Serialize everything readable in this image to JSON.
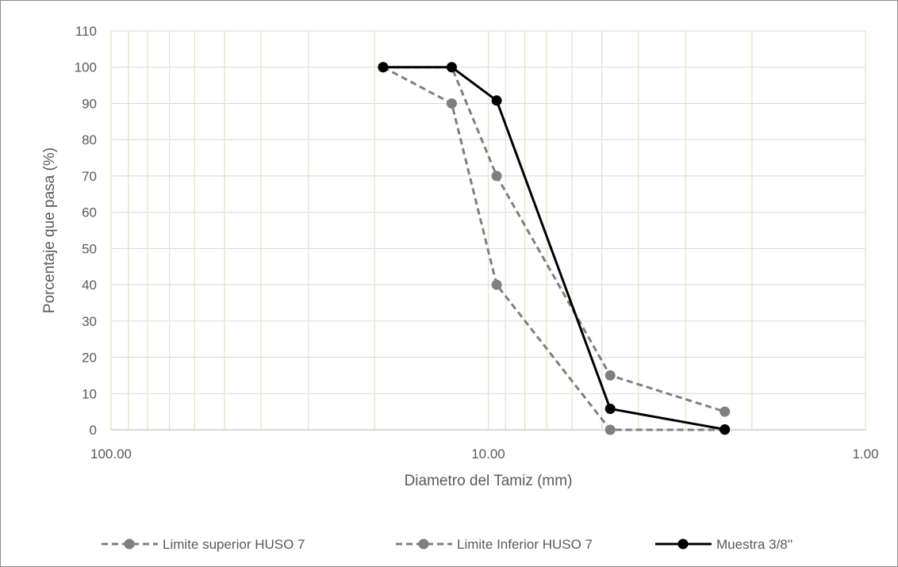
{
  "chart_data": {
    "type": "line",
    "title": "",
    "xlabel": "Diametro del Tamiz (mm)",
    "ylabel": "Porcentaje que pasa (%)",
    "x_scale": "log",
    "x_reversed": true,
    "xlim": [
      100,
      1
    ],
    "ylim": [
      0,
      110
    ],
    "y_ticks": [
      0,
      10,
      20,
      30,
      40,
      50,
      60,
      70,
      80,
      90,
      100,
      110
    ],
    "x_tick_labels": [
      {
        "value": 100,
        "label": "100.00"
      },
      {
        "value": 10,
        "label": "10.00"
      },
      {
        "value": 1,
        "label": "1.00"
      }
    ],
    "grid": true,
    "legend_position": "bottom",
    "series": [
      {
        "name": "Limite superior HUSO 7",
        "style": "dashed",
        "color": "#7f7f7f",
        "x": [
          19.0,
          12.5,
          9.5,
          4.75,
          2.36
        ],
        "y": [
          100,
          100,
          70,
          15,
          5
        ]
      },
      {
        "name": "Limite Inferior HUSO 7",
        "style": "dashed",
        "color": "#7f7f7f",
        "x": [
          19.0,
          12.5,
          9.5,
          4.75,
          2.36
        ],
        "y": [
          100,
          90,
          40,
          0,
          0
        ]
      },
      {
        "name": "Muestra 3/8''",
        "style": "solid",
        "color": "#000000",
        "x": [
          19.0,
          12.5,
          9.5,
          4.75,
          2.36
        ],
        "y": [
          100,
          100,
          90.8,
          5.8,
          0.1
        ]
      }
    ]
  }
}
